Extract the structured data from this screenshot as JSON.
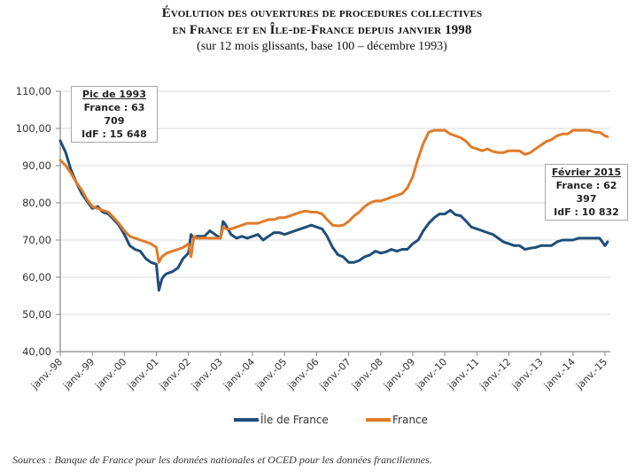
{
  "chart_data": {
    "type": "line",
    "title_lines": [
      "Évolution des ouvertures de procedures collectives",
      "en France et en Île-de-France depuis janvier 1998"
    ],
    "subtitle": "(sur 12 mois glissants, base 100 – décembre 1993)",
    "xlabel": "",
    "ylabel": "",
    "ylim": [
      40,
      110
    ],
    "yticks": [
      "110,00",
      "100,00",
      "90,00",
      "80,00",
      "70,00",
      "60,00",
      "50,00",
      "40,00"
    ],
    "ytick_values": [
      110,
      100,
      90,
      80,
      70,
      60,
      50,
      40
    ],
    "xlim": [
      1998.0,
      2015.17
    ],
    "xticks": [
      "janv.-98",
      "janv.-99",
      "janv.-00",
      "janv.-01",
      "janv.-02",
      "janv.-03",
      "janv.-04",
      "janv.-05",
      "janv.-06",
      "janv.-07",
      "janv.-08",
      "janv.-09",
      "janv.-10",
      "janv.-11",
      "janv.-12",
      "janv.-13",
      "janv.-14",
      "janv.-15"
    ],
    "xtick_values": [
      1998,
      1999,
      2000,
      2001,
      2002,
      2003,
      2004,
      2005,
      2006,
      2007,
      2008,
      2009,
      2010,
      2011,
      2012,
      2013,
      2014,
      2015
    ],
    "grid": true,
    "legend_position": "bottom",
    "series": [
      {
        "name": "Île de France",
        "color": "#1f4e79",
        "x": [
          1998.0,
          1998.17,
          1998.33,
          1998.5,
          1998.67,
          1998.83,
          1999.0,
          1999.17,
          1999.33,
          1999.5,
          1999.67,
          1999.83,
          2000.0,
          2000.17,
          2000.33,
          2000.5,
          2000.67,
          2000.83,
          2001.0,
          2001.08,
          2001.17,
          2001.25,
          2001.33,
          2001.5,
          2001.67,
          2001.83,
          2002.0,
          2002.08,
          2002.17,
          2002.25,
          2002.5,
          2002.67,
          2002.83,
          2003.0,
          2003.08,
          2003.17,
          2003.33,
          2003.5,
          2003.67,
          2003.83,
          2004.0,
          2004.17,
          2004.33,
          2004.5,
          2004.67,
          2004.83,
          2005.0,
          2005.17,
          2005.33,
          2005.5,
          2005.67,
          2005.83,
          2006.0,
          2006.17,
          2006.33,
          2006.5,
          2006.67,
          2006.83,
          2007.0,
          2007.17,
          2007.33,
          2007.5,
          2007.67,
          2007.83,
          2008.0,
          2008.17,
          2008.33,
          2008.5,
          2008.67,
          2008.83,
          2009.0,
          2009.17,
          2009.33,
          2009.5,
          2009.67,
          2009.83,
          2010.0,
          2010.17,
          2010.33,
          2010.5,
          2010.67,
          2010.83,
          2011.0,
          2011.17,
          2011.33,
          2011.5,
          2011.67,
          2011.83,
          2012.0,
          2012.17,
          2012.33,
          2012.5,
          2012.67,
          2012.83,
          2013.0,
          2013.17,
          2013.33,
          2013.5,
          2013.67,
          2013.83,
          2014.0,
          2014.17,
          2014.33,
          2014.5,
          2014.67,
          2014.83,
          2015.0,
          2015.08
        ],
        "values": [
          96.7,
          93.5,
          89.0,
          85.5,
          82.5,
          80.5,
          78.5,
          79.0,
          77.5,
          77.0,
          75.5,
          74.0,
          71.5,
          68.5,
          67.5,
          67.0,
          65.0,
          64.0,
          63.5,
          56.5,
          59.5,
          60.5,
          61.0,
          61.5,
          62.5,
          65.0,
          66.5,
          71.5,
          70.5,
          71.0,
          71.0,
          72.5,
          71.5,
          70.5,
          75.0,
          74.0,
          71.5,
          70.5,
          71.0,
          70.5,
          71.0,
          71.5,
          70.0,
          71.0,
          72.0,
          72.0,
          71.5,
          72.0,
          72.5,
          73.0,
          73.5,
          74.0,
          73.5,
          73.0,
          71.0,
          68.0,
          66.0,
          65.5,
          64.0,
          64.0,
          64.5,
          65.5,
          66.0,
          67.0,
          66.5,
          66.8,
          67.5,
          67.0,
          67.5,
          67.5,
          69.0,
          70.0,
          72.5,
          74.5,
          76.0,
          77.0,
          77.0,
          78.0,
          76.8,
          76.5,
          75.0,
          73.5,
          73.0,
          72.5,
          72.0,
          71.5,
          70.5,
          69.5,
          69.0,
          68.5,
          68.5,
          67.5,
          67.8,
          68.0,
          68.5,
          68.5,
          68.5,
          69.5,
          70.0,
          70.0,
          70.0,
          70.5,
          70.5,
          70.5,
          70.5,
          70.5,
          68.5,
          69.5
        ]
      },
      {
        "name": "France",
        "color": "#e07b28",
        "x": [
          1998.0,
          1998.17,
          1998.33,
          1998.5,
          1998.67,
          1998.83,
          1999.0,
          1999.17,
          1999.33,
          1999.5,
          1999.67,
          1999.83,
          2000.0,
          2000.17,
          2000.33,
          2000.5,
          2000.67,
          2000.83,
          2001.0,
          2001.08,
          2001.17,
          2001.33,
          2001.5,
          2001.67,
          2001.83,
          2002.0,
          2002.08,
          2002.17,
          2002.25,
          2002.5,
          2002.67,
          2002.83,
          2003.0,
          2003.08,
          2003.17,
          2003.33,
          2003.5,
          2003.67,
          2003.83,
          2004.0,
          2004.17,
          2004.33,
          2004.5,
          2004.67,
          2004.83,
          2005.0,
          2005.17,
          2005.33,
          2005.5,
          2005.67,
          2005.83,
          2006.0,
          2006.17,
          2006.33,
          2006.5,
          2006.67,
          2006.83,
          2007.0,
          2007.17,
          2007.33,
          2007.5,
          2007.67,
          2007.83,
          2008.0,
          2008.17,
          2008.33,
          2008.5,
          2008.67,
          2008.83,
          2009.0,
          2009.17,
          2009.33,
          2009.5,
          2009.67,
          2009.83,
          2010.0,
          2010.17,
          2010.33,
          2010.5,
          2010.67,
          2010.83,
          2011.0,
          2011.17,
          2011.33,
          2011.5,
          2011.67,
          2011.83,
          2012.0,
          2012.17,
          2012.33,
          2012.5,
          2012.67,
          2012.83,
          2013.0,
          2013.17,
          2013.33,
          2013.5,
          2013.67,
          2013.83,
          2014.0,
          2014.17,
          2014.33,
          2014.5,
          2014.67,
          2014.83,
          2015.0,
          2015.08
        ],
        "values": [
          91.5,
          90.0,
          88.0,
          85.5,
          83.5,
          81.0,
          79.0,
          78.5,
          78.0,
          77.5,
          76.0,
          74.5,
          72.5,
          71.0,
          70.5,
          70.0,
          69.5,
          69.0,
          68.0,
          64.0,
          65.5,
          66.5,
          67.0,
          67.5,
          68.0,
          69.0,
          65.5,
          71.0,
          70.5,
          70.5,
          70.5,
          70.5,
          70.5,
          73.5,
          73.0,
          73.0,
          73.5,
          74.0,
          74.5,
          74.5,
          74.5,
          75.0,
          75.5,
          75.5,
          76.0,
          76.0,
          76.5,
          77.0,
          77.5,
          77.8,
          77.5,
          77.5,
          77.0,
          75.5,
          74.0,
          73.8,
          74.0,
          75.0,
          76.5,
          77.5,
          79.0,
          80.0,
          80.5,
          80.5,
          81.0,
          81.5,
          82.0,
          82.5,
          84.0,
          87.0,
          92.0,
          96.0,
          99.0,
          99.5,
          99.5,
          99.5,
          98.5,
          98.0,
          97.5,
          96.5,
          95.0,
          94.5,
          94.0,
          94.5,
          93.8,
          93.5,
          93.5,
          94.0,
          94.0,
          94.0,
          93.0,
          93.5,
          94.5,
          95.5,
          96.5,
          97.0,
          98.0,
          98.5,
          98.5,
          99.5,
          99.5,
          99.5,
          99.5,
          99.0,
          99.0,
          98.0,
          97.8
        ]
      }
    ],
    "annotations": [
      {
        "heading": "Pic de 1993",
        "lines": [
          "France : 63 709",
          "IdF : 15 648"
        ]
      },
      {
        "heading": "Février 2015",
        "lines": [
          "France : 62 397",
          "IdF : 10 832"
        ]
      }
    ]
  },
  "legend": {
    "items": [
      {
        "label": "Île de France",
        "color": "#1f4e79"
      },
      {
        "label": "France",
        "color": "#e07b28"
      }
    ]
  },
  "sources": "Sources : Banque de France pour les données nationales et OCED pour les données franciliennes."
}
